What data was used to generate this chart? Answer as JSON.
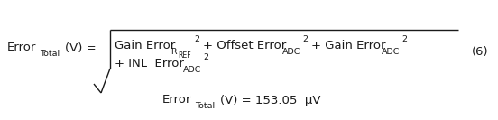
{
  "background_color": "#ffffff",
  "figsize": [
    5.52,
    1.33
  ],
  "dpi": 100,
  "fs_main": 9.5,
  "fs_sub": 6.8,
  "fs_sup": 6.8,
  "text_color": "#1a1a1a",
  "lhs": "Error",
  "lhs_sub": "Total",
  "lhs_mid": "(V) =",
  "line1_a": "Gain Error",
  "line1_a_sub": "R",
  "line1_a_subsub": "REF",
  "line1_a_sup": "2",
  "line1_b": "+ Offset Error",
  "line1_b_sub": "ADC",
  "line1_b_sup": "2",
  "line1_c": "+ Gain Error",
  "line1_c_sub": "ADC",
  "line1_c_sup": "2",
  "line2_a": "+ INL  Error",
  "line2_a_sub": "ADC",
  "line2_a_sup": "2",
  "eq_num": "(6)",
  "result_a": "Error",
  "result_sub": "Total",
  "result_b": "(V) = 153.05  μV"
}
